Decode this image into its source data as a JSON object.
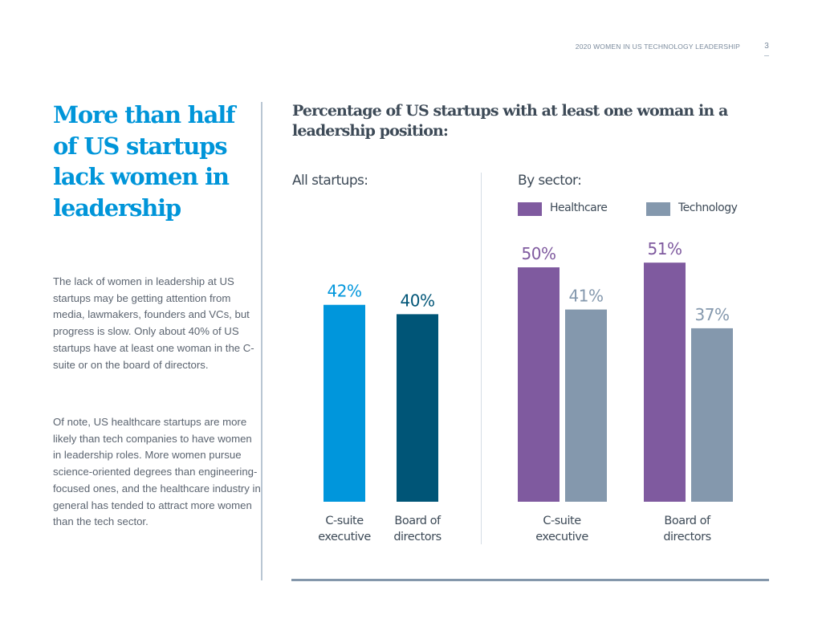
{
  "header": {
    "running_title": "2020 WOMEN IN US TECHNOLOGY LEADERSHIP",
    "page_number": "3"
  },
  "sidebar": {
    "headline": "More than half of US startups lack women in leadership",
    "paragraphs": [
      "The lack of women in leadership at US startups may be getting attention from media, lawmakers, founders and VCs, but progress is slow. Only about 40% of US startups have at least one woman in the C-suite or on the board of directors.",
      "Of note, US healthcare startups are more likely than tech companies to have women in leadership roles. More women pursue science-oriented degrees than engineering-focused ones, and the healthcare industry in general has tended to attract more women than the tech sector."
    ]
  },
  "colors": {
    "headline": "#0095d9",
    "all_csuite": "#0096dc",
    "all_board": "#005577",
    "healthcare": "#7f5a9f",
    "technology": "#8498ad",
    "healthcare_label": "#7f5a9f",
    "technology_label": "#8498ad"
  },
  "chart_data": [
    {
      "type": "bar",
      "title": "Percentage of US startups with at least one woman in a leadership position:",
      "subtitle": "All startups:",
      "categories": [
        "C-suite executive",
        "Board of directors"
      ],
      "category_lines": [
        [
          "C-suite",
          "executive"
        ],
        [
          "Board of",
          "directors"
        ]
      ],
      "values": [
        42,
        40
      ],
      "value_labels": [
        "42%",
        "40%"
      ],
      "colors": [
        "#0096dc",
        "#005577"
      ],
      "ylim": [
        0,
        100
      ],
      "grid": false,
      "xlabel": "",
      "ylabel": ""
    },
    {
      "type": "bar",
      "subtitle": "By sector:",
      "categories": [
        "C-suite executive",
        "Board of directors"
      ],
      "category_lines": [
        [
          "C-suite",
          "executive"
        ],
        [
          "Board of",
          "directors"
        ]
      ],
      "series": [
        {
          "name": "Healthcare",
          "values": [
            50,
            51
          ],
          "value_labels": [
            "50%",
            "51%"
          ],
          "color": "#7f5a9f"
        },
        {
          "name": "Technology",
          "values": [
            41,
            37
          ],
          "value_labels": [
            "41%",
            "37%"
          ],
          "color": "#8498ad"
        }
      ],
      "legend": {
        "placement": "top",
        "entries": [
          "Healthcare",
          "Technology"
        ]
      },
      "ylim": [
        0,
        100
      ],
      "grid": false,
      "xlabel": "",
      "ylabel": ""
    }
  ]
}
